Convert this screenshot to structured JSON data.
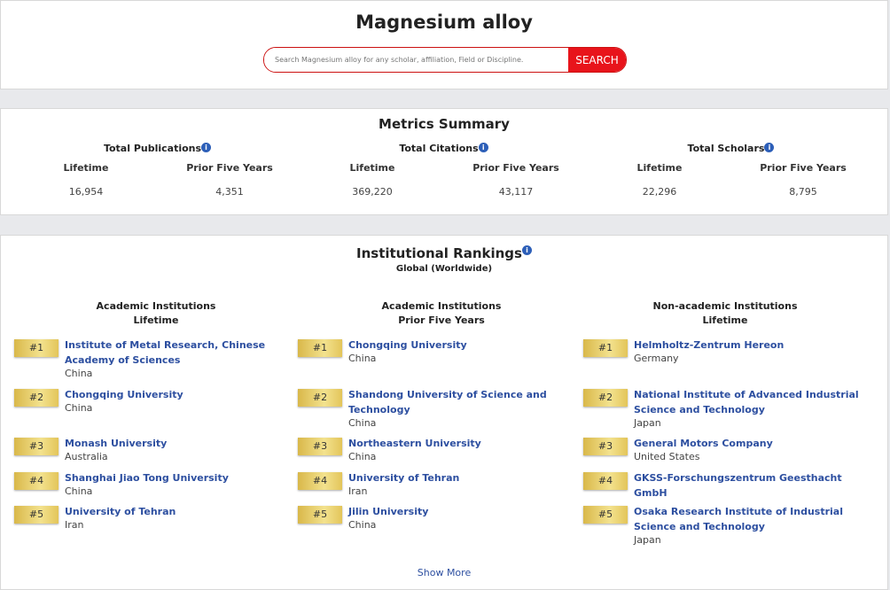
{
  "header": {
    "title": "Magnesium alloy",
    "search_placeholder": "Search Magnesium alloy for any scholar, affiliation, Field or Discipline.",
    "search_button": "SEARCH"
  },
  "metrics": {
    "title": "Metrics Summary",
    "groups": [
      {
        "title": "Total Publications",
        "lifetime_label": "Lifetime",
        "prior_label": "Prior Five Years",
        "lifetime": "16,954",
        "prior": "4,351"
      },
      {
        "title": "Total Citations",
        "lifetime_label": "Lifetime",
        "prior_label": "Prior Five Years",
        "lifetime": "369,220",
        "prior": "43,117"
      },
      {
        "title": "Total Scholars",
        "lifetime_label": "Lifetime",
        "prior_label": "Prior Five Years",
        "lifetime": "22,296",
        "prior": "8,795"
      }
    ]
  },
  "rankings": {
    "title": "Institutional Rankings",
    "subtitle": "Global (Worldwide)",
    "show_more": "Show More",
    "columns": [
      {
        "heading": "Academic Institutions",
        "period": "Lifetime",
        "items": [
          {
            "rank": "#1",
            "name": "Institute of Metal Research, Chinese Academy of Sciences",
            "country": "China"
          },
          {
            "rank": "#2",
            "name": "Chongqing University",
            "country": "China"
          },
          {
            "rank": "#3",
            "name": "Monash University",
            "country": "Australia"
          },
          {
            "rank": "#4",
            "name": "Shanghai Jiao Tong University",
            "country": "China"
          },
          {
            "rank": "#5",
            "name": "University of Tehran",
            "country": "Iran"
          }
        ]
      },
      {
        "heading": "Academic Institutions",
        "period": "Prior Five Years",
        "items": [
          {
            "rank": "#1",
            "name": "Chongqing University",
            "country": "China"
          },
          {
            "rank": "#2",
            "name": "Shandong University of Science and Technology",
            "country": "China"
          },
          {
            "rank": "#3",
            "name": "Northeastern University",
            "country": "China"
          },
          {
            "rank": "#4",
            "name": "University of Tehran",
            "country": "Iran"
          },
          {
            "rank": "#5",
            "name": "Jilin University",
            "country": "China"
          }
        ]
      },
      {
        "heading": "Non-academic Institutions",
        "period": "Lifetime",
        "items": [
          {
            "rank": "#1",
            "name": "Helmholtz-Zentrum Hereon",
            "country": "Germany"
          },
          {
            "rank": "#2",
            "name": "National Institute of Advanced Industrial Science and Technology",
            "country": "Japan"
          },
          {
            "rank": "#3",
            "name": "General Motors Company",
            "country": "United States"
          },
          {
            "rank": "#4",
            "name": "GKSS-Forschungszentrum Geesthacht GmbH",
            "country": ""
          },
          {
            "rank": "#5",
            "name": "Osaka Research Institute of Industrial Science and Technology",
            "country": "Japan"
          }
        ]
      }
    ]
  }
}
